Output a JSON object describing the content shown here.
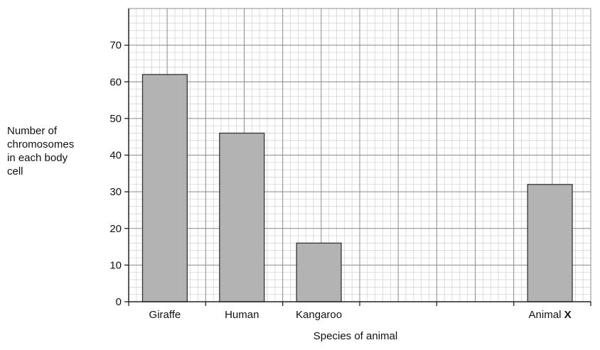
{
  "chart_data": {
    "type": "bar",
    "categories": [
      "Giraffe",
      "Human",
      "Kangaroo",
      "",
      "",
      "Animal X"
    ],
    "category_parts": [
      {
        "text": "Giraffe",
        "bold": ""
      },
      {
        "text": "Human",
        "bold": ""
      },
      {
        "text": "Kangaroo",
        "bold": ""
      },
      {
        "text": "",
        "bold": ""
      },
      {
        "text": "",
        "bold": ""
      },
      {
        "text": "Animal ",
        "bold": "X"
      }
    ],
    "values": [
      62,
      46,
      16,
      null,
      null,
      32
    ],
    "ylim": [
      0,
      80
    ],
    "yticks": [
      0,
      10,
      20,
      30,
      40,
      50,
      60,
      70
    ],
    "ylabel_lines": [
      "Number of",
      "chromosomes",
      "in each body",
      "cell"
    ],
    "xlabel": "Species of animal",
    "grid": true,
    "colors": {
      "bar": "#b3b3b3",
      "bar_edge": "#333333",
      "grid_minor": "#cfcfcf",
      "grid_major": "#8c8c8c",
      "axis": "#222222"
    }
  }
}
